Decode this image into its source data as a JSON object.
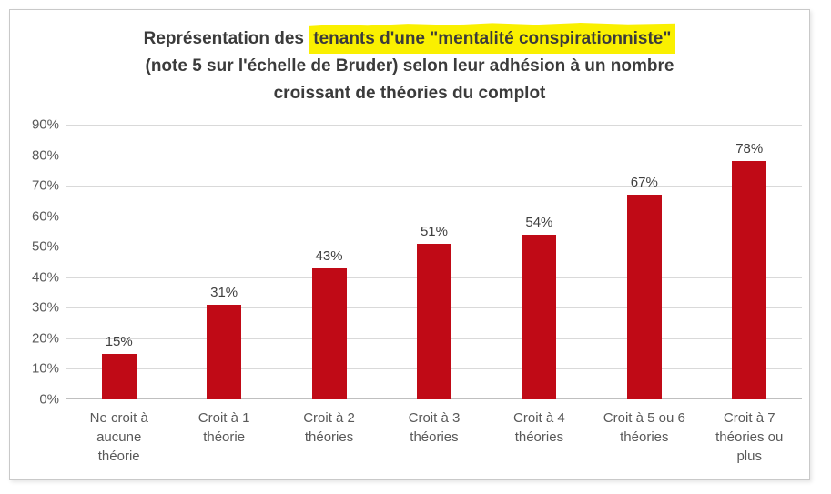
{
  "chart_data": {
    "type": "bar",
    "title": {
      "line1_pre": "Représentation des ",
      "line1_highlight": "tenants d'une \"mentalité conspirationniste\"",
      "line2": "(note 5 sur l'échelle de Bruder) selon leur adhésion à un nombre",
      "line3": "croissant de théories du complot",
      "full": "Représentation des tenants d'une \"mentalité conspirationniste\" (note 5 sur l'échelle de Bruder) selon leur adhésion à un nombre croissant de théories du complot"
    },
    "categories": [
      "Ne croit à aucune théorie",
      "Croit à 1 théorie",
      "Croit à 2 théories",
      "Croit à 3 théories",
      "Croit à 4 théories",
      "Croit à 5 ou 6 théories",
      "Croit à 7 théories ou plus"
    ],
    "categories_lines": [
      [
        "Ne croit à",
        "aucune",
        "théorie"
      ],
      [
        "Croit à 1",
        "théorie"
      ],
      [
        "Croit à 2",
        "théories"
      ],
      [
        "Croit à 3",
        "théories"
      ],
      [
        "Croit à 4",
        "théories"
      ],
      [
        "Croit à 5 ou 6",
        "théories"
      ],
      [
        "Croit à 7",
        "théories ou",
        "plus"
      ]
    ],
    "values": [
      15,
      31,
      43,
      51,
      54,
      67,
      78
    ],
    "data_labels": [
      "15%",
      "31%",
      "43%",
      "51%",
      "54%",
      "67%",
      "78%"
    ],
    "y_ticks": [
      "90%",
      "80%",
      "70%",
      "60%",
      "50%",
      "40%",
      "30%",
      "20%",
      "10%",
      "0%"
    ],
    "ylim": [
      0,
      90
    ],
    "grid": true,
    "legend": "none",
    "xlabel": "",
    "ylabel": "",
    "colors": {
      "bar": "#c00a16",
      "highlight": "#faf000",
      "gridline": "#d9d9d9",
      "baseline": "#bfbfbf",
      "axis_text": "#595959",
      "title_text": "#3b3b3b",
      "value_label_text": "#3f3f3f"
    }
  }
}
